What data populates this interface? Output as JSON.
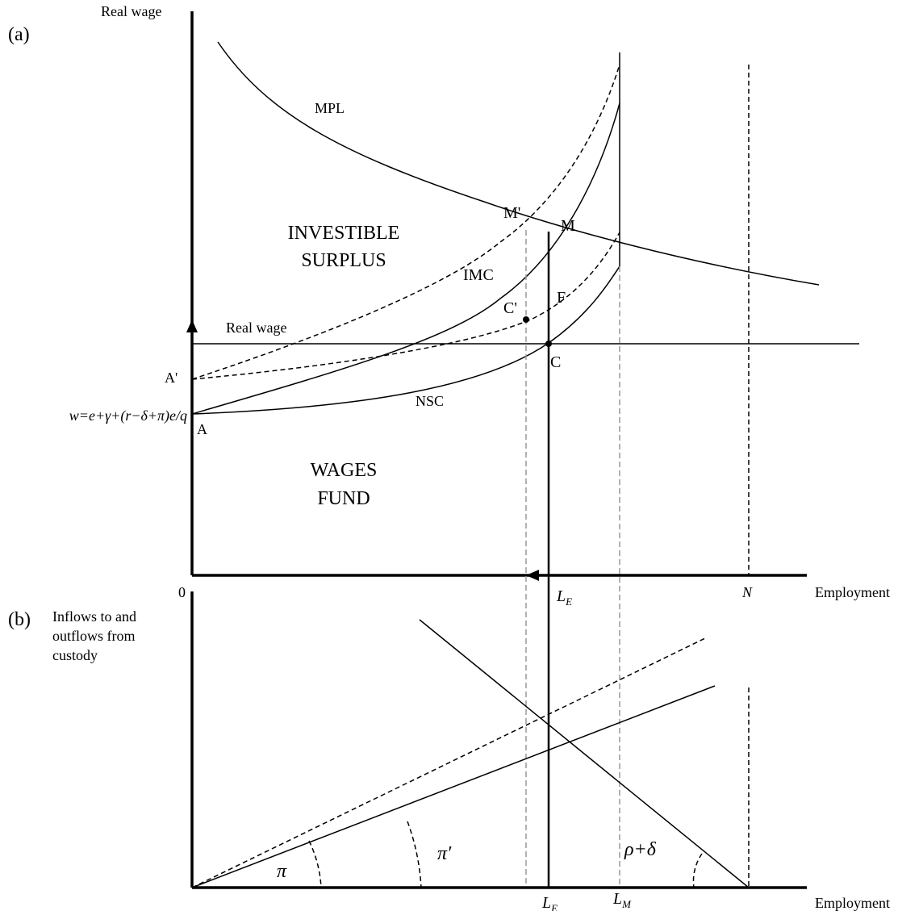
{
  "panel_a": {
    "tag": "(a)",
    "y_label": "Real wage",
    "mpl": "MPL",
    "surplus": [
      "INVESTIBLE",
      "SURPLUS"
    ],
    "m_prime": "M'",
    "m": "M",
    "imc": "IMC",
    "c_prime": "C'",
    "f": "F",
    "wage_line": "Real wage",
    "a_prime": "A'",
    "c": "C",
    "formula": "w=e+γ+(r−δ+π)e/q",
    "a": "A",
    "nsc": "NSC",
    "fund": [
      "WAGES",
      "FUND"
    ],
    "origin": "0",
    "le": {
      "main": "L",
      "sub": "E"
    },
    "n": "N",
    "x_label": "Employment"
  },
  "panel_b": {
    "tag": "(b)",
    "y_label": [
      "Inflows to and",
      "outflows from",
      "custody"
    ],
    "pi": "π",
    "pi_prime": "π′",
    "rho_delta": "ρ+δ",
    "le": {
      "main": "L",
      "sub": "E"
    },
    "lm": {
      "main": "L",
      "sub": "M"
    },
    "x_label": "Employment"
  }
}
